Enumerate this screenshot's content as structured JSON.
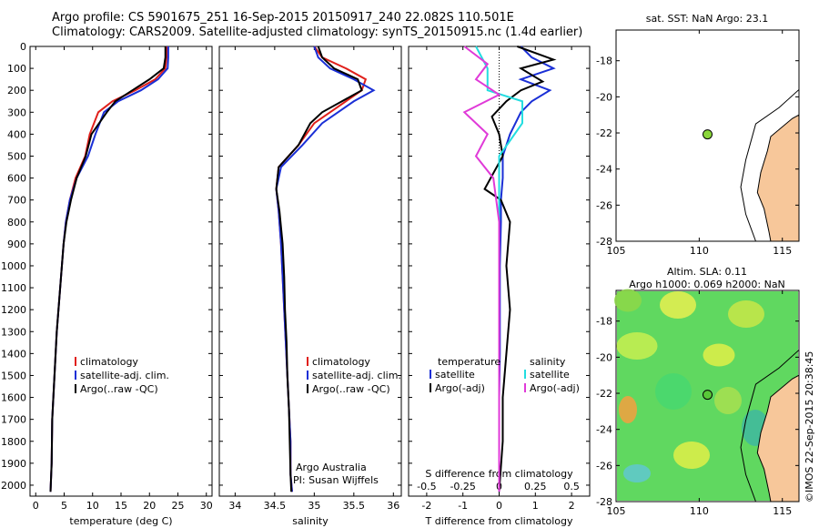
{
  "header": {
    "line1": "Argo profile: CS 5901675_251 16-Sep-2015 20150917_240 22.082S 110.501E",
    "line2": "Climatology: CARS2009. Satellite-adjusted climatology: synTS_20150915.nc (1.4d earlier)"
  },
  "colors": {
    "climatology": "#e0201b",
    "satellite": "#1a2fd6",
    "argo": "#000000",
    "sat_diff": "#22dde0",
    "argo_adj": "#e03ad8",
    "land": "#f7c79a",
    "map_bg_ticks": "#000000"
  },
  "depth_axis": {
    "ticks": [
      "0",
      "100",
      "200",
      "300",
      "400",
      "500",
      "600",
      "700",
      "800",
      "900",
      "1000",
      "1100",
      "1200",
      "1300",
      "1400",
      "1500",
      "1600",
      "1700",
      "1800",
      "1900",
      "2000"
    ]
  },
  "panels": {
    "temperature": {
      "xlabel": "temperature (deg C)",
      "xticks": [
        "0",
        "5",
        "10",
        "15",
        "20",
        "25",
        "30"
      ],
      "legend": [
        "climatology",
        "satellite-adj. clim.",
        "Argo(..raw -QC)"
      ]
    },
    "salinity": {
      "xlabel": "salinity",
      "xticks": [
        "34",
        "34.5",
        "35",
        "35.5",
        "36"
      ],
      "legend": [
        "climatology",
        "satellite-adj. clim.",
        "Argo(..raw -QC)"
      ],
      "note1": "Argo Australia",
      "note2": "PI: Susan Wijffels"
    },
    "difference": {
      "top_ticks": [
        "-0.5",
        "-0.25",
        "0",
        "0.25",
        "0.5"
      ],
      "bottom_ticks": [
        "-2",
        "-1",
        "0",
        "1",
        "2"
      ],
      "top_label": "S difference from climatology",
      "xlabel": "T difference from climatology",
      "legend_temp_head": "temperature",
      "legend_sal_head": "salinity",
      "legend_temp": [
        "satellite",
        "Argo(-adj)"
      ],
      "legend_sal": [
        "satellite",
        "Argo(-adj)"
      ]
    }
  },
  "maps": {
    "sst": {
      "title": "sat. SST: NaN Argo: 23.1",
      "yticks": [
        "-18",
        "-20",
        "-22",
        "-24",
        "-26",
        "-28"
      ],
      "xticks": [
        "105",
        "110",
        "115"
      ]
    },
    "sla": {
      "title1": "Altim. SLA: 0.11",
      "title2": "Argo h1000: 0.069 h2000: NaN",
      "yticks": [
        "-18",
        "-20",
        "-22",
        "-24",
        "-26",
        "-28"
      ],
      "xticks": [
        "105",
        "110",
        "115"
      ],
      "float_lon": 110.5,
      "float_lat": -22.08
    }
  },
  "stamp": "©IMOS 22-Sep-2015 20:38:45",
  "chart_data": [
    {
      "type": "line",
      "title": "",
      "xlabel": "temperature (deg C)",
      "ylabel": "",
      "xlim": [
        -1,
        31
      ],
      "ylim": [
        2050,
        0
      ],
      "series": [
        {
          "name": "climatology",
          "x": [
            23.0,
            23.0,
            22.8,
            21.0,
            17.5,
            13.5,
            11.0,
            9.5,
            8.7,
            7.0,
            6.0,
            5.3,
            4.9,
            4.6,
            4.3,
            4.0,
            3.7,
            3.5,
            3.3,
            3.1,
            2.9,
            2.8,
            2.6
          ],
          "y": [
            0,
            50,
            100,
            150,
            200,
            250,
            300,
            400,
            500,
            600,
            700,
            800,
            900,
            1000,
            1100,
            1200,
            1300,
            1400,
            1500,
            1600,
            1700,
            1900,
            2030
          ]
        },
        {
          "name": "satellite-adj. clim.",
          "x": [
            23.3,
            23.3,
            23.2,
            21.5,
            18.5,
            14.5,
            12.0,
            10.5,
            9.2,
            7.2,
            6.0,
            5.3,
            4.9,
            4.6,
            4.3,
            4.0,
            3.7,
            3.5,
            3.3,
            3.1,
            2.9,
            2.8,
            2.6
          ],
          "y": [
            0,
            50,
            100,
            150,
            200,
            250,
            300,
            400,
            500,
            600,
            700,
            800,
            900,
            1000,
            1100,
            1200,
            1300,
            1400,
            1500,
            1600,
            1700,
            1900,
            2030
          ]
        },
        {
          "name": "Argo(..raw -QC)",
          "x": [
            22.8,
            22.8,
            22.5,
            20.0,
            17.0,
            14.0,
            12.5,
            9.8,
            8.8,
            7.2,
            6.2,
            5.4,
            4.9,
            4.6,
            4.3,
            4.0,
            3.7,
            3.5,
            3.3,
            3.1,
            2.9,
            2.8,
            2.6
          ],
          "y": [
            0,
            50,
            100,
            150,
            200,
            250,
            300,
            400,
            500,
            600,
            700,
            800,
            900,
            1000,
            1100,
            1200,
            1300,
            1400,
            1500,
            1600,
            1700,
            1900,
            2030
          ]
        }
      ]
    },
    {
      "type": "line",
      "title": "",
      "xlabel": "salinity",
      "ylabel": "",
      "xlim": [
        33.8,
        36.1
      ],
      "ylim": [
        2050,
        0
      ],
      "series": [
        {
          "name": "climatology",
          "x": [
            35.0,
            35.1,
            35.4,
            35.65,
            35.6,
            35.4,
            35.2,
            35.0,
            34.8,
            34.55,
            34.52,
            34.55,
            34.58,
            34.6,
            34.62,
            34.64,
            34.66,
            34.68,
            34.7,
            34.7,
            34.72
          ],
          "y": [
            0,
            50,
            100,
            150,
            200,
            250,
            300,
            350,
            450,
            550,
            650,
            750,
            900,
            1050,
            1200,
            1350,
            1500,
            1650,
            1800,
            1950,
            2030
          ]
        },
        {
          "name": "satellite-adj. clim.",
          "x": [
            35.0,
            35.05,
            35.2,
            35.5,
            35.75,
            35.5,
            35.3,
            35.1,
            34.85,
            34.58,
            34.52,
            34.55,
            34.58,
            34.6,
            34.62,
            34.64,
            34.66,
            34.68,
            34.7,
            34.7,
            34.72
          ],
          "y": [
            0,
            50,
            100,
            150,
            200,
            250,
            300,
            350,
            450,
            550,
            650,
            750,
            900,
            1050,
            1200,
            1350,
            1500,
            1650,
            1800,
            1950,
            2030
          ]
        },
        {
          "name": "Argo(..raw -QC)",
          "x": [
            35.05,
            35.1,
            35.25,
            35.55,
            35.6,
            35.35,
            35.1,
            34.95,
            34.8,
            34.55,
            34.52,
            34.56,
            34.6,
            34.62,
            34.63,
            34.65,
            34.66,
            34.68,
            34.69,
            34.7,
            34.71
          ],
          "y": [
            0,
            50,
            100,
            150,
            200,
            250,
            300,
            350,
            450,
            550,
            650,
            750,
            900,
            1050,
            1200,
            1350,
            1500,
            1650,
            1800,
            1950,
            2030
          ]
        }
      ]
    },
    {
      "type": "line",
      "title": "",
      "xlabel": "T difference from climatology",
      "ylabel": "",
      "xlim": [
        -2.5,
        2.5
      ],
      "ylim": [
        2050,
        0
      ],
      "series": [
        {
          "name": "temperature satellite",
          "x": [
            0.6,
            0.9,
            1.5,
            0.6,
            1.4,
            0.9,
            0.6,
            0.3,
            0.1,
            0.1,
            0.05,
            0.05,
            0.02,
            0.02,
            0.02,
            0.0,
            0.0,
            0.0
          ],
          "y": [
            0,
            50,
            100,
            150,
            200,
            250,
            300,
            400,
            500,
            600,
            700,
            800,
            1000,
            1200,
            1400,
            1600,
            1800,
            2030
          ]
        },
        {
          "name": "temperature Argo(-adj)",
          "x": [
            0.5,
            1.5,
            0.6,
            1.2,
            0.6,
            0.2,
            -0.2,
            0.0,
            0.1,
            -0.4,
            0.05,
            0.3,
            0.2,
            0.3,
            0.2,
            0.1,
            0.1,
            0.0
          ],
          "y": [
            0,
            60,
            100,
            160,
            200,
            250,
            320,
            400,
            500,
            650,
            700,
            800,
            1000,
            1200,
            1400,
            1600,
            1800,
            2030
          ]
        },
        {
          "name": "salinity satellite",
          "x": [
            -0.2,
            -0.1,
            -0.1,
            0.2,
            0.2,
            0.0,
            0.0,
            0.0,
            0.0,
            0.0,
            0.0,
            0.0,
            0.0
          ],
          "y": [
            0,
            100,
            200,
            250,
            350,
            500,
            700,
            900,
            1100,
            1400,
            1700,
            1900,
            2030
          ]
        },
        {
          "name": "salinity Argo(-adj)",
          "x": [
            -0.3,
            -0.1,
            -0.2,
            0.0,
            -0.3,
            -0.1,
            -0.2,
            -0.05,
            0.0,
            0.0,
            0.0,
            0.0,
            0.0
          ],
          "y": [
            0,
            80,
            150,
            220,
            300,
            400,
            500,
            600,
            800,
            1000,
            1400,
            1800,
            2030
          ]
        }
      ]
    }
  ]
}
